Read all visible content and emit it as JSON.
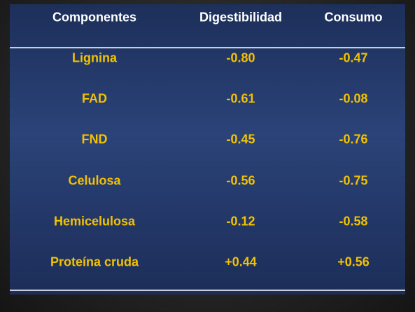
{
  "table": {
    "header": [
      "Componentes",
      "Digestibilidad",
      "Consumo"
    ],
    "rows": [
      [
        "Lignina",
        "-0.80",
        "-0.47"
      ],
      [
        "FAD",
        "-0.61",
        "-0.08"
      ],
      [
        "FND",
        "-0.45",
        "-0.76"
      ],
      [
        "Celulosa",
        "-0.56",
        "-0.75"
      ],
      [
        "Hemicelulosa",
        "-0.12",
        "-0.58"
      ],
      [
        "Proteína cruda",
        "+0.44",
        "+0.56"
      ]
    ]
  }
}
